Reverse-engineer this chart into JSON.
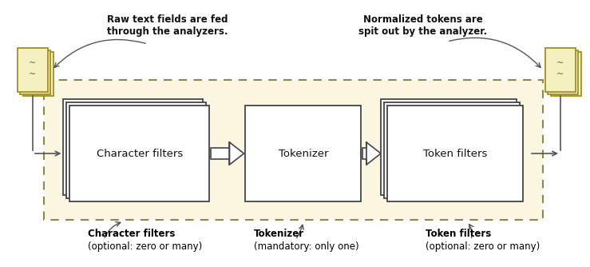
{
  "bg_color": "#ffffff",
  "analyzer_bg": "#faf6e0",
  "box_fill": "#ffffff",
  "box_edge": "#444444",
  "dashed_color": "#888855",
  "doc_fill": "#f5f0c0",
  "doc_edge": "#a09020",
  "arrow_color": "#555555",
  "label_color": "#111111",
  "char_filter_label": "Character filters",
  "tokenizer_label": "Tokenizer",
  "token_filter_label": "Token filters",
  "top_left_text": "Raw text fields are fed\nthrough the analyzers.",
  "top_right_text": "Normalized tokens are\nspit out by the analyzer.",
  "bottom_left_bold": "Character filters",
  "bottom_left_sub": "(optional: zero or many)",
  "bottom_mid_bold": "Tokenizer",
  "bottom_mid_sub": "(mandatory: only one)",
  "bottom_right_bold": "Token filters",
  "bottom_right_sub": "(optional: zero or many)",
  "fig_w": 7.39,
  "fig_h": 3.34,
  "dpi": 100
}
